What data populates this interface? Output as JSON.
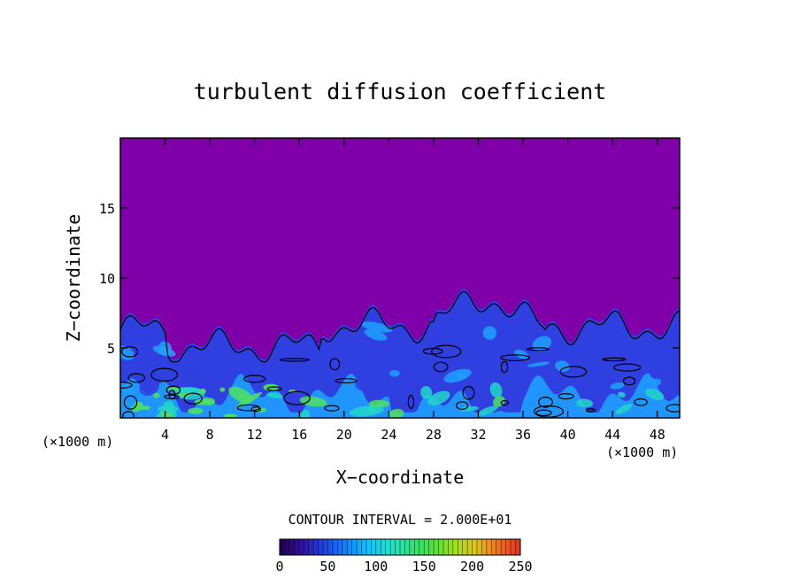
{
  "chart_data": {
    "type": "heatmap",
    "title": "turbulent diffusion coefficient",
    "xlabel": "X−coordinate",
    "ylabel": "Z−coordinate",
    "x_unit_left": "(×1000 m)",
    "x_unit_right": "(×1000 m)",
    "xlim": [
      0,
      50
    ],
    "ylim": [
      0,
      20
    ],
    "x_ticks": [
      4,
      8,
      12,
      16,
      20,
      24,
      28,
      32,
      36,
      40,
      44,
      48
    ],
    "y_ticks": [
      5,
      10,
      15
    ],
    "contour_interval_label": "CONTOUR INTERVAL = 2.000E+01",
    "contour_interval": 20,
    "colorbar": {
      "min": 0,
      "max": 250,
      "tick_labels": [
        0,
        50,
        100,
        150,
        200,
        250
      ],
      "colors": [
        "#20004a",
        "#3010a0",
        "#2040e0",
        "#1080ff",
        "#10c0ff",
        "#20e0d0",
        "#30e080",
        "#50e040",
        "#a0e020",
        "#e0c020",
        "#f07020",
        "#e03020"
      ]
    },
    "field_colors": {
      "background": "#7f00a8",
      "low": "#2f3fe0",
      "mid": "#1fa0ff",
      "high": "#22d6c8",
      "peak": "#4fe060"
    }
  }
}
